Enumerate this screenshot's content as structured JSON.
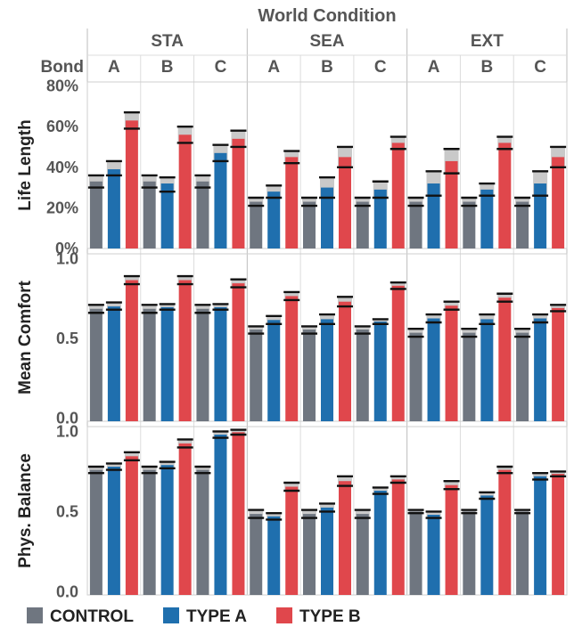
{
  "chart_data": {
    "type": "bar",
    "header": {
      "title": "World Condition",
      "conditions": [
        "STA",
        "SEA",
        "EXT"
      ],
      "bond_label": "Bond",
      "bonds": [
        "A",
        "B",
        "C"
      ]
    },
    "legend": [
      {
        "name": "CONTROL",
        "color": "#6f7680"
      },
      {
        "name": "TYPE A",
        "color": "#1f6fae"
      },
      {
        "name": "TYPE B",
        "color": "#e0474c"
      }
    ],
    "colors": {
      "control": "#6f7680",
      "type_a": "#1f6fae",
      "type_b": "#e0474c",
      "error_band": "#c9c9c9"
    },
    "panels": [
      {
        "ylabel": "Life Length",
        "ylim": [
          0,
          82
        ],
        "ticks": [
          0,
          20,
          40,
          60,
          80
        ],
        "tick_labels": [
          "0%",
          "20%",
          "40%",
          "60%",
          "80%"
        ],
        "groups": [
          {
            "condition": "STA",
            "bond": "A",
            "control": [
              30,
              33,
              36
            ],
            "type_a": [
              36,
              39,
              43
            ],
            "type_b": [
              59,
              63,
              67
            ]
          },
          {
            "condition": "STA",
            "bond": "B",
            "control": [
              30,
              33,
              36
            ],
            "type_a": [
              28,
              32,
              35
            ],
            "type_b": [
              52,
              56,
              60
            ]
          },
          {
            "condition": "STA",
            "bond": "C",
            "control": [
              30,
              33,
              36
            ],
            "type_a": [
              43,
              47,
              51
            ],
            "type_b": [
              50,
              54,
              58
            ]
          },
          {
            "condition": "SEA",
            "bond": "A",
            "control": [
              21,
              23,
              25
            ],
            "type_a": [
              25,
              28,
              31
            ],
            "type_b": [
              42,
              45,
              48
            ]
          },
          {
            "condition": "SEA",
            "bond": "B",
            "control": [
              21,
              23,
              25
            ],
            "type_a": [
              25,
              30,
              35
            ],
            "type_b": [
              40,
              45,
              50
            ]
          },
          {
            "condition": "SEA",
            "bond": "C",
            "control": [
              21,
              23,
              25
            ],
            "type_a": [
              25,
              29,
              33
            ],
            "type_b": [
              49,
              52,
              55
            ]
          },
          {
            "condition": "EXT",
            "bond": "A",
            "control": [
              21,
              23,
              25
            ],
            "type_a": [
              26,
              32,
              38
            ],
            "type_b": [
              37,
              43,
              49
            ]
          },
          {
            "condition": "EXT",
            "bond": "B",
            "control": [
              21,
              23,
              25
            ],
            "type_a": [
              26,
              29,
              32
            ],
            "type_b": [
              49,
              52,
              55
            ]
          },
          {
            "condition": "EXT",
            "bond": "C",
            "control": [
              21,
              23,
              25
            ],
            "type_a": [
              26,
              32,
              38
            ],
            "type_b": [
              40,
              45,
              50
            ]
          }
        ]
      },
      {
        "ylabel": "Mean Comfort",
        "ylim": [
          -0.02,
          1.03
        ],
        "ticks": [
          0,
          0.5,
          1
        ],
        "tick_labels": [
          "0.0",
          "0.5",
          "1.0"
        ],
        "groups": [
          {
            "condition": "STA",
            "bond": "A",
            "control": [
              0.66,
              0.685,
              0.71
            ],
            "type_a": [
              0.68,
              0.7,
              0.725
            ],
            "type_b": [
              0.84,
              0.865,
              0.89
            ]
          },
          {
            "condition": "STA",
            "bond": "B",
            "control": [
              0.66,
              0.685,
              0.71
            ],
            "type_a": [
              0.68,
              0.695,
              0.715
            ],
            "type_b": [
              0.84,
              0.865,
              0.89
            ]
          },
          {
            "condition": "STA",
            "bond": "C",
            "control": [
              0.66,
              0.685,
              0.71
            ],
            "type_a": [
              0.68,
              0.695,
              0.715
            ],
            "type_b": [
              0.82,
              0.845,
              0.87
            ]
          },
          {
            "condition": "SEA",
            "bond": "A",
            "control": [
              0.53,
              0.555,
              0.575
            ],
            "type_a": [
              0.59,
              0.615,
              0.64
            ],
            "type_b": [
              0.74,
              0.765,
              0.79
            ]
          },
          {
            "condition": "SEA",
            "bond": "B",
            "control": [
              0.53,
              0.555,
              0.575
            ],
            "type_a": [
              0.59,
              0.62,
              0.65
            ],
            "type_b": [
              0.7,
              0.73,
              0.76
            ]
          },
          {
            "condition": "SEA",
            "bond": "C",
            "control": [
              0.53,
              0.555,
              0.575
            ],
            "type_a": [
              0.59,
              0.605,
              0.62
            ],
            "type_b": [
              0.81,
              0.83,
              0.85
            ]
          },
          {
            "condition": "EXT",
            "bond": "A",
            "control": [
              0.51,
              0.535,
              0.56
            ],
            "type_a": [
              0.6,
              0.625,
              0.65
            ],
            "type_b": [
              0.68,
              0.705,
              0.73
            ]
          },
          {
            "condition": "EXT",
            "bond": "B",
            "control": [
              0.51,
              0.535,
              0.56
            ],
            "type_a": [
              0.59,
              0.62,
              0.65
            ],
            "type_b": [
              0.73,
              0.755,
              0.78
            ]
          },
          {
            "condition": "EXT",
            "bond": "C",
            "control": [
              0.51,
              0.535,
              0.56
            ],
            "type_a": [
              0.6,
              0.625,
              0.65
            ],
            "type_b": [
              0.67,
              0.69,
              0.71
            ]
          }
        ]
      },
      {
        "ylabel": "Phys. Balance",
        "ylim": [
          -0.02,
          1.03
        ],
        "ticks": [
          0,
          0.5,
          1
        ],
        "tick_labels": [
          "0.0",
          "0.5",
          "1.0"
        ],
        "groups": [
          {
            "condition": "STA",
            "bond": "A",
            "control": [
              0.74,
              0.76,
              0.78
            ],
            "type_a": [
              0.76,
              0.78,
              0.8
            ],
            "type_b": [
              0.82,
              0.845,
              0.87
            ]
          },
          {
            "condition": "STA",
            "bond": "B",
            "control": [
              0.74,
              0.76,
              0.78
            ],
            "type_a": [
              0.77,
              0.79,
              0.81
            ],
            "type_b": [
              0.9,
              0.925,
              0.95
            ]
          },
          {
            "condition": "STA",
            "bond": "C",
            "control": [
              0.74,
              0.76,
              0.78
            ],
            "type_a": [
              0.96,
              0.98,
              1.0
            ],
            "type_b": [
              0.98,
              0.995,
              1.01
            ]
          },
          {
            "condition": "SEA",
            "bond": "A",
            "control": [
              0.46,
              0.485,
              0.51
            ],
            "type_a": [
              0.45,
              0.47,
              0.49
            ],
            "type_b": [
              0.63,
              0.655,
              0.68
            ]
          },
          {
            "condition": "SEA",
            "bond": "B",
            "control": [
              0.46,
              0.485,
              0.51
            ],
            "type_a": [
              0.5,
              0.525,
              0.55
            ],
            "type_b": [
              0.66,
              0.69,
              0.72
            ]
          },
          {
            "condition": "SEA",
            "bond": "C",
            "control": [
              0.46,
              0.485,
              0.51
            ],
            "type_a": [
              0.61,
              0.63,
              0.65
            ],
            "type_b": [
              0.68,
              0.7,
              0.72
            ]
          },
          {
            "condition": "EXT",
            "bond": "A",
            "control": [
              0.49,
              0.5,
              0.51
            ],
            "type_a": [
              0.46,
              0.48,
              0.5
            ],
            "type_b": [
              0.64,
              0.665,
              0.69
            ]
          },
          {
            "condition": "EXT",
            "bond": "B",
            "control": [
              0.49,
              0.5,
              0.51
            ],
            "type_a": [
              0.58,
              0.6,
              0.62
            ],
            "type_b": [
              0.74,
              0.76,
              0.78
            ]
          },
          {
            "condition": "EXT",
            "bond": "C",
            "control": [
              0.49,
              0.5,
              0.51
            ],
            "type_a": [
              0.7,
              0.72,
              0.74
            ],
            "type_b": [
              0.72,
              0.735,
              0.75
            ]
          }
        ]
      }
    ]
  }
}
